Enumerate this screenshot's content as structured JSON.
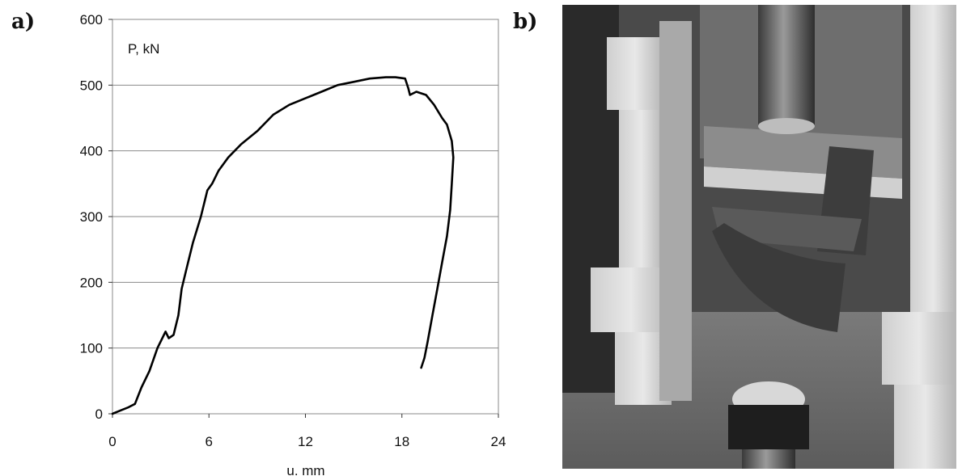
{
  "panels": {
    "a": "a)",
    "b": "b)"
  },
  "chart_data": {
    "type": "line",
    "title": "",
    "ylabel": "P, kN",
    "xlabel": "u. mm",
    "xlim": [
      0,
      24
    ],
    "ylim": [
      0,
      600
    ],
    "xticks": [
      0,
      6,
      12,
      18,
      24
    ],
    "yticks": [
      0,
      100,
      200,
      300,
      400,
      500,
      600
    ],
    "grid": "horizontal",
    "series": [
      {
        "line_color": "#000000",
        "x": [
          0.0,
          0.5,
          1.0,
          1.4,
          1.8,
          2.3,
          2.8,
          3.1,
          3.3,
          3.5,
          3.8,
          3.9,
          4.1,
          4.3,
          4.6,
          5.0,
          5.5,
          5.9,
          6.2,
          6.6,
          7.2,
          8.0,
          9.0,
          10.0,
          11.0,
          12.0,
          13.0,
          14.0,
          15.0,
          16.0,
          17.0,
          17.6,
          18.2,
          18.4,
          18.5,
          18.9,
          19.5,
          20.0,
          20.5,
          20.8,
          21.1,
          21.2,
          21.1,
          21.0,
          20.8,
          20.5,
          20.2,
          19.9,
          19.6,
          19.4,
          19.2
        ],
        "y": [
          0,
          5,
          10,
          15,
          40,
          65,
          100,
          115,
          125,
          115,
          120,
          130,
          150,
          190,
          220,
          260,
          300,
          340,
          350,
          370,
          390,
          410,
          430,
          455,
          470,
          480,
          490,
          500,
          505,
          510,
          512,
          512,
          510,
          495,
          485,
          490,
          485,
          470,
          450,
          440,
          415,
          390,
          350,
          310,
          270,
          230,
          190,
          150,
          110,
          85,
          70
        ]
      }
    ]
  },
  "photo": {
    "description_icon": "photo-icon"
  }
}
